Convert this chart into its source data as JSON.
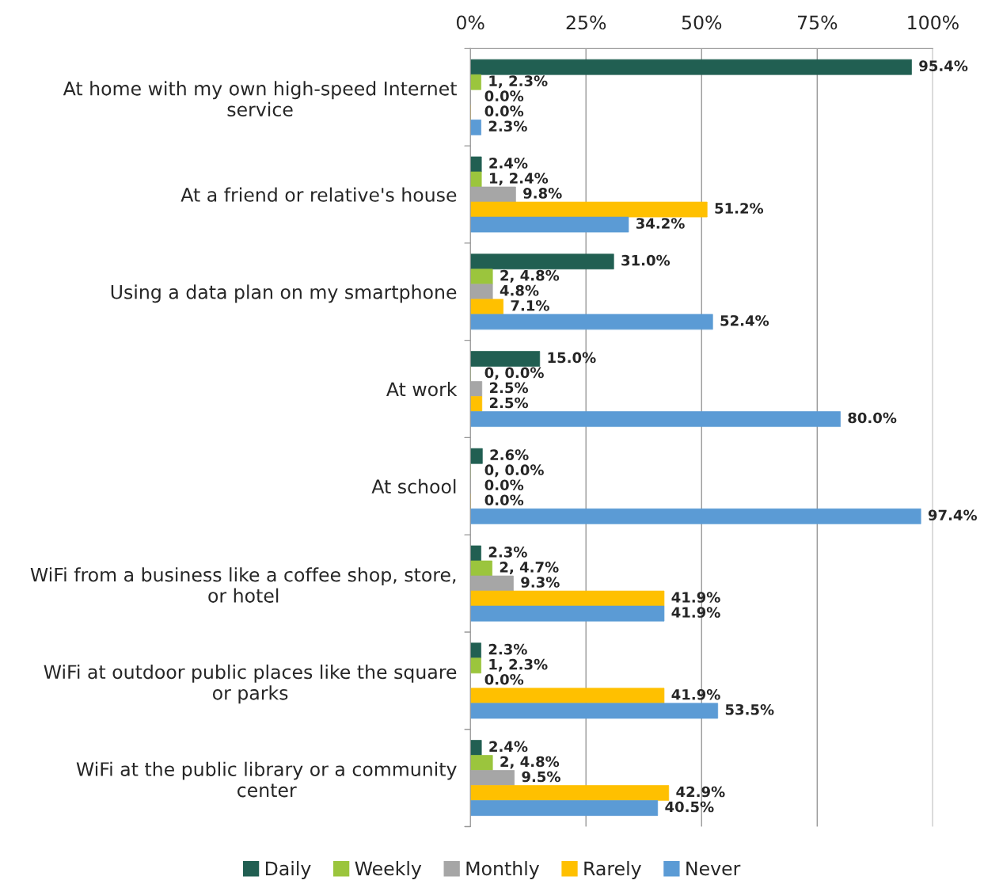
{
  "chart_data": {
    "type": "bar",
    "orientation": "horizontal",
    "categories": [
      "At home with my own high-speed Internet\nservice",
      "At a friend or relative's house",
      "Using a data plan on my smartphone",
      "At work",
      "At school",
      "WiFi from a business like a coffee shop, store,\nor hotel",
      "WiFi at outdoor public places like the square\nor parks",
      "WiFi at the public library or a community\ncenter"
    ],
    "series": [
      {
        "name": "Daily",
        "color": "#215f52",
        "values": [
          95.4,
          2.4,
          31.0,
          15.0,
          2.6,
          2.3,
          2.3,
          2.4
        ],
        "value_labels": [
          "95.4%",
          "2.4%",
          "31.0%",
          "15.0%",
          "2.6%",
          "2.3%",
          "2.3%",
          "2.4%"
        ]
      },
      {
        "name": "Weekly",
        "color": "#9bc53d",
        "values": [
          2.3,
          2.4,
          4.8,
          0.0,
          0.0,
          4.7,
          2.3,
          4.8
        ],
        "value_labels": [
          "1, 2.3%",
          "1, 2.4%",
          "2, 4.8%",
          "0, 0.0%",
          "0, 0.0%",
          "2, 4.7%",
          "1, 2.3%",
          "2, 4.8%"
        ]
      },
      {
        "name": "Monthly",
        "color": "#a6a6a6",
        "values": [
          0.0,
          9.8,
          4.8,
          2.5,
          0.0,
          9.3,
          0.0,
          9.5
        ],
        "value_labels": [
          "0.0%",
          "9.8%",
          "4.8%",
          "2.5%",
          "0.0%",
          "9.3%",
          "0.0%",
          "9.5%"
        ]
      },
      {
        "name": "Rarely",
        "color": "#ffc000",
        "values": [
          0.0,
          51.2,
          7.1,
          2.5,
          0.0,
          41.9,
          41.9,
          42.9
        ],
        "value_labels": [
          "0.0%",
          "51.2%",
          "7.1%",
          "2.5%",
          "0.0%",
          "41.9%",
          "41.9%",
          "42.9%"
        ]
      },
      {
        "name": "Never",
        "color": "#5b9bd5",
        "values": [
          2.3,
          34.2,
          52.4,
          80.0,
          97.4,
          41.9,
          53.5,
          40.5
        ],
        "value_labels": [
          "2.3%",
          "34.2%",
          "52.4%",
          "80.0%",
          "97.4%",
          "41.9%",
          "53.5%",
          "40.5%"
        ]
      }
    ],
    "xlim": [
      0,
      100
    ],
    "xticks": [
      {
        "value": 0,
        "label": "0%"
      },
      {
        "value": 25,
        "label": "25%"
      },
      {
        "value": 50,
        "label": "50%"
      },
      {
        "value": 75,
        "label": "75%"
      },
      {
        "value": 100,
        "label": "100%"
      }
    ],
    "grid": "x",
    "legend": "bottom"
  }
}
